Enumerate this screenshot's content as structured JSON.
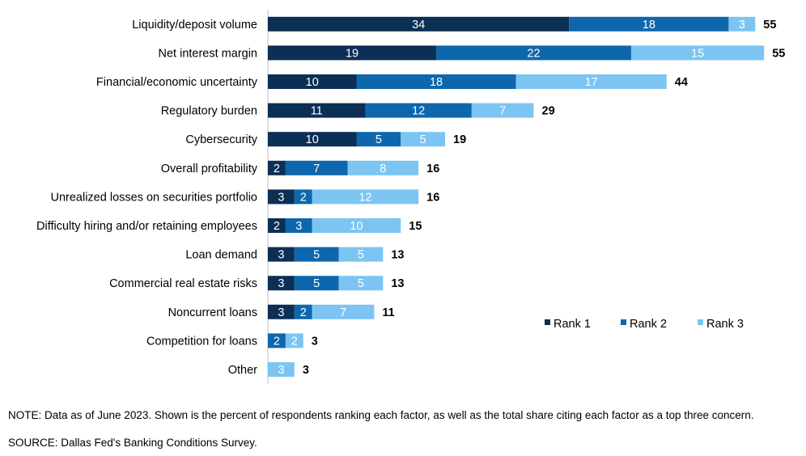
{
  "chart_data": {
    "type": "bar",
    "orientation": "horizontal",
    "stacked": true,
    "categories": [
      "Liquidity/deposit volume",
      "Net interest margin",
      "Financial/economic uncertainty",
      "Regulatory burden",
      "Cybersecurity",
      "Overall profitability",
      "Unrealized losses on securities portfolio",
      "Difficulty hiring and/or retaining employees",
      "Loan demand",
      "Commercial real estate risks",
      "Noncurrent loans",
      "Competition for loans",
      "Other"
    ],
    "series": [
      {
        "name": "Rank 1",
        "color": "#0b2f55",
        "values": [
          34,
          19,
          10,
          11,
          10,
          2,
          3,
          2,
          3,
          3,
          3,
          0,
          0
        ]
      },
      {
        "name": "Rank 2",
        "color": "#0e67ac",
        "values": [
          18,
          22,
          18,
          12,
          5,
          7,
          2,
          3,
          5,
          5,
          2,
          2,
          0
        ]
      },
      {
        "name": "Rank 3",
        "color": "#7cc5f3",
        "values": [
          3,
          15,
          17,
          7,
          5,
          8,
          12,
          10,
          5,
          5,
          7,
          2,
          3
        ]
      }
    ],
    "totals": [
      55,
      55,
      44,
      29,
      19,
      16,
      16,
      15,
      13,
      13,
      11,
      3,
      3
    ],
    "legend_position": "bottom-right",
    "grid": false
  },
  "note": "NOTE: Data as of June 2023. Shown is the percent of respondents ranking each factor, as well as the total share citing each factor as a top three concern.",
  "source": "SOURCE: Dallas Fed's Banking Conditions Survey."
}
